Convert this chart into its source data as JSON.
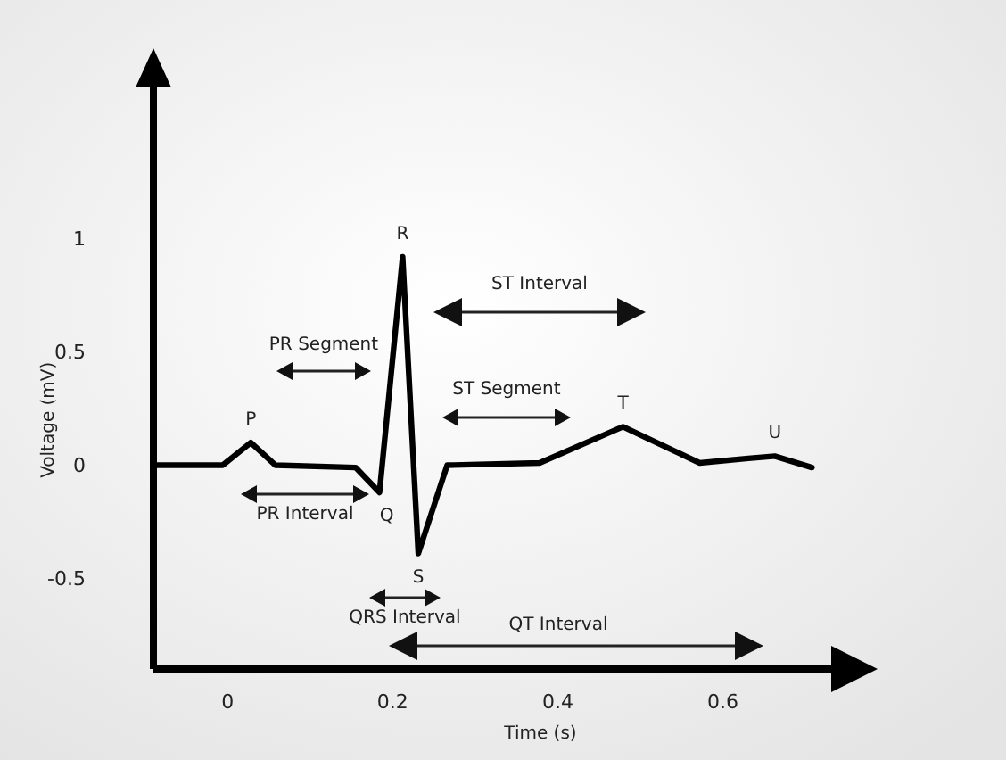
{
  "chart_data": {
    "type": "line",
    "xlabel": "Time (s)",
    "ylabel": "Voltage (mV)",
    "x": [
      -0.09,
      -0.006,
      0.028,
      0.058,
      0.155,
      0.184,
      0.212,
      0.231,
      0.266,
      0.378,
      0.479,
      0.572,
      0.631,
      0.663,
      0.708
    ],
    "series": [
      {
        "color": "#000000",
        "values": [
          0,
          0,
          0.1,
          0,
          -0.01,
          -0.12,
          0.92,
          -0.39,
          0,
          0.01,
          0.17,
          0.01,
          0.03,
          0.04,
          -0.01
        ]
      }
    ],
    "xlim": [
      -0.09,
      0.74
    ],
    "ylim": [
      -0.9,
      1.7
    ],
    "xticks": [
      0,
      0.2,
      0.4,
      0.6
    ],
    "yticks": [
      -0.5,
      0,
      0.5,
      1
    ],
    "grid": false,
    "marker": "none",
    "line_style": "solid",
    "annotations": [
      {
        "text": "P",
        "x": 0.028,
        "y": 0.1
      },
      {
        "text": "Q",
        "x": 0.184,
        "y": -0.12
      },
      {
        "text": "R",
        "x": 0.212,
        "y": 0.92
      },
      {
        "text": "S",
        "x": 0.231,
        "y": -0.39
      },
      {
        "text": "T",
        "x": 0.479,
        "y": 0.17
      },
      {
        "text": "U",
        "x": 0.663,
        "y": 0.04
      },
      "PR Segment",
      "PR Interval",
      "ST Interval",
      "ST Segment",
      "QRS Interval",
      "QT Interval"
    ]
  }
}
